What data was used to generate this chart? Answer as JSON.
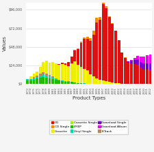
{
  "xlabel": "Product Types",
  "ylabel": "Values",
  "ylim": [
    0,
    105000
  ],
  "yticks": [
    0,
    24000,
    48000,
    72000,
    96000
  ],
  "ytick_labels": [
    "$0",
    "$24,000",
    "$48,000",
    "$72,000",
    "$96,000"
  ],
  "background_color": "#f5f5f5",
  "plot_bg": "#ffffff",
  "categories": [
    "1973",
    "1974",
    "1975",
    "1976",
    "1977",
    "1978",
    "1979",
    "1980",
    "1981",
    "1982",
    "1983",
    "1984",
    "1985",
    "1986",
    "1987",
    "1988",
    "1989",
    "1990",
    "1991",
    "1992",
    "1993",
    "1994",
    "1995",
    "1996",
    "1997",
    "1998",
    "1999",
    "2000",
    "2001",
    "2002",
    "2003",
    "2004",
    "2005",
    "2006",
    "2007",
    "2008",
    "2009",
    "2010",
    "2011",
    "2012"
  ],
  "series": {
    "LP/EP": [
      4800,
      4700,
      5900,
      6900,
      8200,
      9200,
      8500,
      7600,
      6400,
      5400,
      4400,
      4100,
      3200,
      2900,
      2500,
      1900,
      1300,
      900,
      600,
      500,
      300,
      200,
      200,
      200,
      200,
      200,
      100,
      100,
      100,
      100,
      100,
      100,
      100,
      100,
      0,
      0,
      0,
      0,
      0,
      0
    ],
    "Vinyl Single": [
      1500,
      1600,
      1800,
      2100,
      2300,
      2500,
      2200,
      2100,
      1800,
      1500,
      1000,
      800,
      600,
      500,
      400,
      300,
      200,
      200,
      100,
      100,
      100,
      100,
      100,
      100,
      100,
      100,
      100,
      100,
      100,
      100,
      100,
      100,
      100,
      100,
      100,
      100,
      100,
      100,
      100,
      100
    ],
    "8-Track": [
      0,
      400,
      1100,
      1900,
      2800,
      3600,
      3000,
      2200,
      1500,
      400,
      100,
      0,
      0,
      0,
      0,
      0,
      0,
      0,
      0,
      0,
      0,
      0,
      0,
      0,
      0,
      0,
      0,
      0,
      0,
      0,
      0,
      0,
      0,
      0,
      0,
      0,
      0,
      0,
      0,
      0
    ],
    "Cassette": [
      0,
      3100,
      4300,
      5600,
      8900,
      12800,
      16100,
      15800,
      18400,
      19800,
      19100,
      21200,
      20500,
      18800,
      22800,
      25900,
      22400,
      19800,
      18000,
      16600,
      11900,
      9400,
      6800,
      4900,
      4200,
      3600,
      2800,
      1600,
      1100,
      600,
      400,
      200,
      100,
      100,
      0,
      0,
      0,
      0,
      0,
      0
    ],
    "Cassette Single": [
      0,
      0,
      0,
      0,
      0,
      0,
      0,
      0,
      0,
      0,
      100,
      100,
      200,
      600,
      800,
      900,
      1100,
      1000,
      900,
      800,
      500,
      300,
      200,
      200,
      200,
      100,
      100,
      100,
      0,
      0,
      0,
      0,
      0,
      0,
      0,
      0,
      0,
      0,
      0,
      0
    ],
    "CD": [
      0,
      0,
      0,
      0,
      0,
      0,
      0,
      0,
      0,
      0,
      800,
      1000,
      2000,
      5300,
      9100,
      14600,
      19800,
      31600,
      38900,
      40800,
      43000,
      53500,
      72700,
      77800,
      98600,
      94500,
      83200,
      75700,
      67600,
      56000,
      40400,
      33700,
      27500,
      26700,
      26000,
      24800,
      20900,
      18800,
      18300,
      17400
    ],
    "CD Single": [
      0,
      0,
      0,
      0,
      0,
      0,
      0,
      0,
      0,
      0,
      0,
      0,
      0,
      0,
      0,
      800,
      1200,
      1600,
      2000,
      2000,
      3600,
      5100,
      5800,
      3200,
      2500,
      1900,
      1400,
      900,
      400,
      200,
      100,
      100,
      0,
      0,
      0,
      0,
      0,
      0,
      0,
      0
    ],
    "Download Single": [
      0,
      0,
      0,
      0,
      0,
      0,
      0,
      0,
      0,
      0,
      0,
      0,
      0,
      0,
      0,
      0,
      0,
      0,
      0,
      0,
      0,
      0,
      0,
      0,
      0,
      0,
      0,
      0,
      0,
      0,
      0,
      200,
      1100,
      3100,
      5000,
      6800,
      7600,
      8100,
      8700,
      9000
    ],
    "Download Album": [
      0,
      0,
      0,
      0,
      0,
      0,
      0,
      0,
      0,
      0,
      0,
      0,
      0,
      0,
      0,
      0,
      0,
      0,
      0,
      0,
      0,
      0,
      0,
      0,
      0,
      0,
      0,
      0,
      0,
      0,
      0,
      100,
      400,
      1200,
      2600,
      4600,
      7000,
      8700,
      10400,
      11700
    ]
  },
  "colors": {
    "CD": "#dd1111",
    "CD Single": "#ff8800",
    "Cassette": "#eeee00",
    "Cassette Single": "#aaee00",
    "LP/EP": "#22bb00",
    "Vinyl Single": "#00ddaa",
    "Download Single": "#7700cc",
    "Download Album": "#ee00ee",
    "8-Track": "#bb8855"
  },
  "stack_order": [
    "LP/EP",
    "Vinyl Single",
    "8-Track",
    "Cassette",
    "Cassette Single",
    "CD",
    "CD Single",
    "Download Single",
    "Download Album"
  ],
  "legend_order": [
    "CD",
    "CD Single",
    "Cassette",
    "Cassette Single",
    "LP/EP",
    "Vinyl Single",
    "Download Single",
    "Download Album",
    "8-Track"
  ]
}
